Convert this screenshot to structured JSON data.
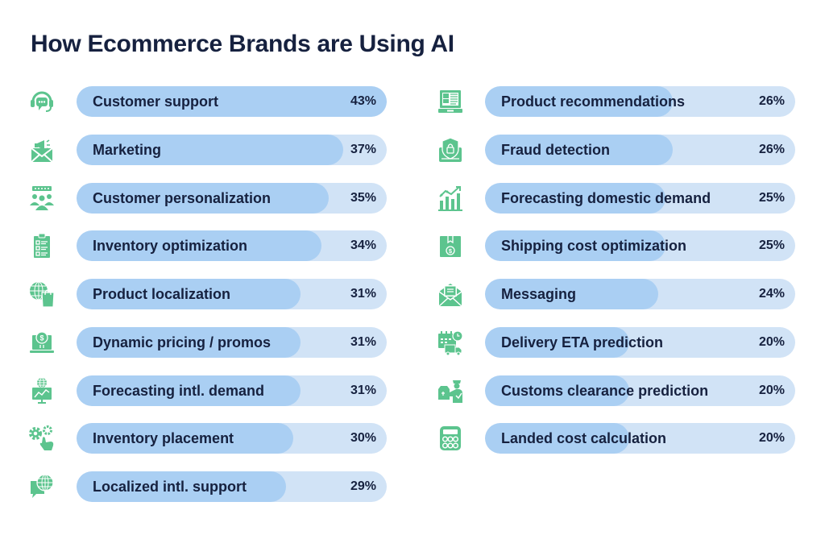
{
  "title": "How Ecommerce Brands are Using AI",
  "colors": {
    "title": "#16213f",
    "bar_fill": "#aacff3",
    "bar_track": "#d1e3f6",
    "icon": "#5cc48e",
    "text": "#16213f"
  },
  "left": [
    {
      "label": "Customer support",
      "value": "43%",
      "pct": 43,
      "icon": "headset-chat-icon"
    },
    {
      "label": "Marketing",
      "value": "37%",
      "pct": 37,
      "icon": "megaphone-envelope-icon"
    },
    {
      "label": "Customer personalization",
      "value": "35%",
      "pct": 35,
      "icon": "people-rating-icon"
    },
    {
      "label": "Inventory optimization",
      "value": "34%",
      "pct": 34,
      "icon": "clipboard-checklist-icon"
    },
    {
      "label": "Product localization",
      "value": "31%",
      "pct": 31,
      "icon": "globe-shopping-bag-icon"
    },
    {
      "label": "Dynamic pricing / promos",
      "value": "31%",
      "pct": 31,
      "icon": "laptop-dollar-icon"
    },
    {
      "label": "Forecasting intl. demand",
      "value": "31%",
      "pct": 31,
      "icon": "globe-monitor-chart-icon"
    },
    {
      "label": "Inventory placement",
      "value": "30%",
      "pct": 30,
      "icon": "gears-hand-icon"
    },
    {
      "label": "Localized intl. support",
      "value": "29%",
      "pct": 29,
      "icon": "globe-speech-bubble-icon"
    }
  ],
  "right": [
    {
      "label": "Product recommendations",
      "value": "26%",
      "pct": 26,
      "icon": "laptop-product-icon"
    },
    {
      "label": "Fraud detection",
      "value": "26%",
      "pct": 26,
      "icon": "shield-lock-icon"
    },
    {
      "label": "Forecasting domestic demand",
      "value": "25%",
      "pct": 25,
      "icon": "bar-chart-trend-icon"
    },
    {
      "label": "Shipping cost optimization",
      "value": "25%",
      "pct": 25,
      "icon": "box-dollar-icon"
    },
    {
      "label": "Messaging",
      "value": "24%",
      "pct": 24,
      "icon": "envelope-letter-icon"
    },
    {
      "label": "Delivery ETA prediction",
      "value": "20%",
      "pct": 20,
      "icon": "calendar-truck-icon"
    },
    {
      "label": "Customs clearance prediction",
      "value": "20%",
      "pct": 20,
      "icon": "customs-officer-icon"
    },
    {
      "label": "Landed cost calculation",
      "value": "20%",
      "pct": 20,
      "icon": "calculator-icon"
    }
  ],
  "chart_data": {
    "type": "bar",
    "orientation": "horizontal",
    "title": "How Ecommerce Brands are Using AI",
    "xlabel": "",
    "ylabel": "",
    "unit": "%",
    "xlim": [
      0,
      43
    ],
    "grid": false,
    "legend": null,
    "categories": [
      "Customer support",
      "Marketing",
      "Customer personalization",
      "Inventory optimization",
      "Product localization",
      "Dynamic pricing / promos",
      "Forecasting intl. demand",
      "Inventory placement",
      "Localized intl. support",
      "Product recommendations",
      "Fraud detection",
      "Forecasting domestic demand",
      "Shipping cost optimization",
      "Messaging",
      "Delivery ETA prediction",
      "Customs clearance prediction",
      "Landed cost calculation"
    ],
    "values": [
      43,
      37,
      35,
      34,
      31,
      31,
      31,
      30,
      29,
      26,
      26,
      25,
      25,
      24,
      20,
      20,
      20
    ]
  }
}
